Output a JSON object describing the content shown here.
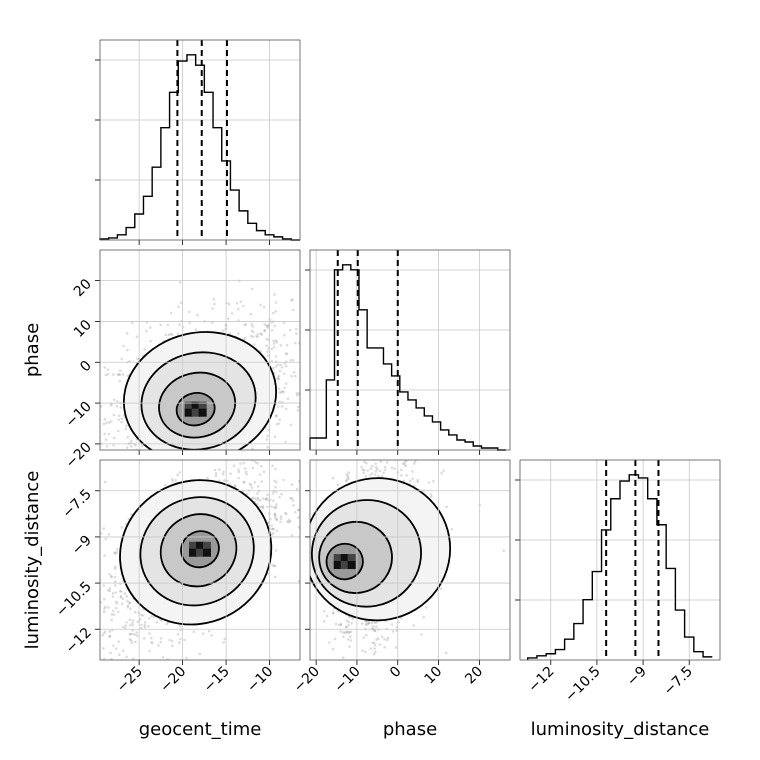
{
  "chart_data": {
    "type": "corner",
    "parameters": [
      "geocent_time",
      "phase",
      "luminosity_distance"
    ],
    "axes": {
      "geocent_time": {
        "label": "geocent_time",
        "lim": [
          -29.5,
          -6.5
        ],
        "ticks": [
          -25,
          -20,
          -15,
          -10
        ]
      },
      "phase": {
        "label": "phase",
        "lim": [
          -21.5,
          27.5
        ],
        "ticks": [
          -20,
          -10,
          0,
          10,
          20
        ]
      },
      "luminosity_distance": {
        "label": "luminosity_distance",
        "lim": [
          -13.0,
          -6.5
        ],
        "ticks": [
          -12.0,
          -10.5,
          -9.0,
          -7.5
        ]
      }
    },
    "marginals": [
      {
        "parameter": "geocent_time",
        "bin_edges": [
          -29.5,
          -28.5,
          -27.5,
          -26.5,
          -25.5,
          -24.5,
          -23.5,
          -22.5,
          -21.5,
          -20.5,
          -19.5,
          -18.5,
          -17.5,
          -16.5,
          -15.5,
          -14.5,
          -13.5,
          -12.5,
          -11.5,
          -10.5,
          -9.5,
          -8.5,
          -7.5,
          -6.5
        ],
        "counts": [
          1,
          2,
          5,
          12,
          25,
          42,
          70,
          108,
          142,
          172,
          178,
          168,
          142,
          108,
          76,
          48,
          28,
          16,
          9,
          5,
          3,
          1,
          0
        ],
        "quantile_lines": [
          -20.6,
          -17.8,
          -14.9
        ]
      },
      {
        "parameter": "phase",
        "bin_edges": [
          -21.5,
          -19.5,
          -17.5,
          -15.5,
          -13.5,
          -11.5,
          -9.5,
          -7.5,
          -5.5,
          -3.5,
          -1.5,
          0.5,
          2.5,
          4.5,
          6.5,
          8.5,
          10.5,
          12.5,
          14.5,
          16.5,
          18.5,
          20.5,
          22.5,
          24.5,
          26.5
        ],
        "counts": [
          12,
          12,
          70,
          180,
          185,
          180,
          140,
          102,
          102,
          86,
          74,
          58,
          50,
          42,
          34,
          28,
          20,
          15,
          10,
          8,
          4,
          2,
          2,
          0
        ],
        "quantile_lines": [
          -14.7,
          -9.8,
          0.0
        ]
      },
      {
        "parameter": "luminosity_distance",
        "bin_edges": [
          -12.75,
          -12.45,
          -12.15,
          -11.85,
          -11.55,
          -11.25,
          -10.95,
          -10.65,
          -10.35,
          -10.05,
          -9.75,
          -9.45,
          -9.15,
          -8.85,
          -8.55,
          -8.25,
          -7.95,
          -7.65,
          -7.35,
          -7.05,
          -6.75
        ],
        "counts": [
          2,
          4,
          6,
          10,
          20,
          35,
          58,
          85,
          125,
          155,
          172,
          178,
          175,
          155,
          130,
          88,
          48,
          22,
          8,
          3
        ],
        "quantile_lines": [
          -10.2,
          -9.25,
          -8.5
        ]
      }
    ],
    "joint": [
      {
        "x": "geocent_time",
        "y": "phase",
        "mean": [
          -18.0,
          -8.5
        ],
        "std": [
          4.2,
          7.5
        ],
        "corr": 0.3,
        "peak": [
          -18.5,
          -11.5
        ]
      },
      {
        "x": "geocent_time",
        "y": "luminosity_distance",
        "mean": [
          -18.5,
          -9.5
        ],
        "std": [
          4.2,
          1.1
        ],
        "corr": 0.6,
        "peak": [
          -18.0,
          -9.4
        ]
      },
      {
        "x": "phase",
        "y": "luminosity_distance",
        "mean": [
          -5.0,
          -9.4
        ],
        "std": [
          8.5,
          1.1
        ],
        "corr": 0.2,
        "peak": [
          -13.0,
          -9.8
        ]
      }
    ],
    "contour_levels_sigma": [
      0.5,
      1.0,
      1.5,
      2.0
    ],
    "grid": true
  }
}
